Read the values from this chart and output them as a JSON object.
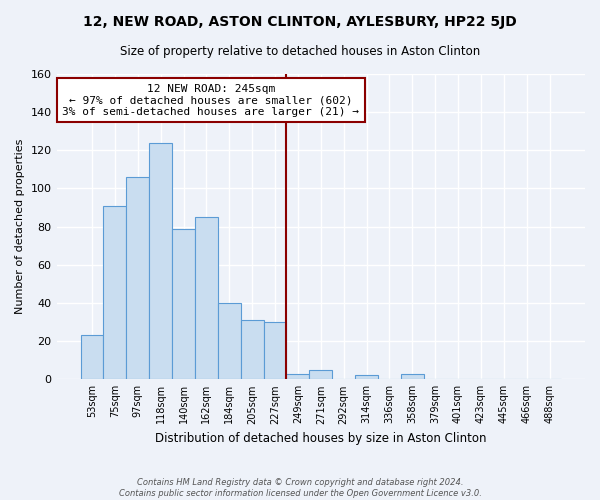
{
  "title": "12, NEW ROAD, ASTON CLINTON, AYLESBURY, HP22 5JD",
  "subtitle": "Size of property relative to detached houses in Aston Clinton",
  "xlabel": "Distribution of detached houses by size in Aston Clinton",
  "ylabel": "Number of detached properties",
  "footer_line1": "Contains HM Land Registry data © Crown copyright and database right 2024.",
  "footer_line2": "Contains public sector information licensed under the Open Government Licence v3.0.",
  "bar_labels": [
    "53sqm",
    "75sqm",
    "97sqm",
    "118sqm",
    "140sqm",
    "162sqm",
    "184sqm",
    "205sqm",
    "227sqm",
    "249sqm",
    "271sqm",
    "292sqm",
    "314sqm",
    "336sqm",
    "358sqm",
    "379sqm",
    "401sqm",
    "423sqm",
    "445sqm",
    "466sqm",
    "488sqm"
  ],
  "bar_values": [
    23,
    91,
    106,
    124,
    79,
    85,
    40,
    31,
    30,
    3,
    5,
    0,
    2,
    0,
    3,
    0,
    0,
    0,
    0,
    0,
    0
  ],
  "bar_color": "#c9ddf0",
  "bar_edge_color": "#5b9bd5",
  "ylim": [
    0,
    160
  ],
  "yticks": [
    0,
    20,
    40,
    60,
    80,
    100,
    120,
    140,
    160
  ],
  "vline_color": "#8b0000",
  "annotation_title": "12 NEW ROAD: 245sqm",
  "annotation_line1": "← 97% of detached houses are smaller (602)",
  "annotation_line2": "3% of semi-detached houses are larger (21) →",
  "annotation_box_color": "#ffffff",
  "annotation_box_edge": "#8b0000",
  "background_color": "#eef2f9",
  "plot_bg_color": "#eef2f9",
  "grid_color": "#ffffff"
}
